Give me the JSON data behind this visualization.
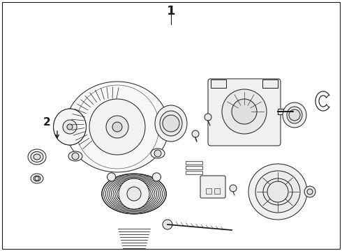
{
  "title_label": "1",
  "part_label": "2",
  "bg_color": "#ffffff",
  "line_color": "#1a1a1a",
  "line_width": 0.7,
  "fig_width": 4.9,
  "fig_height": 3.6,
  "dpi": 100
}
